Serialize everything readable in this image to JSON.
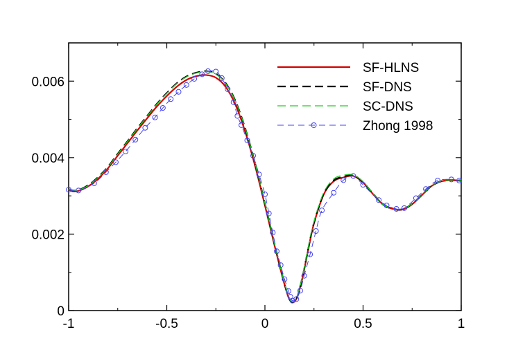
{
  "chart_data": {
    "type": "line",
    "title": "",
    "xlabel": "",
    "ylabel": "",
    "xlim": [
      -1,
      1
    ],
    "ylim": [
      0,
      0.007
    ],
    "grid": false,
    "legend_placement": "top-right",
    "x_ticks": [
      "-1",
      "-0.5",
      "0",
      "0.5",
      "1"
    ],
    "x_tick_values": [
      -1,
      -0.5,
      0,
      0.5,
      1
    ],
    "y_ticks": [
      "0",
      "0.002",
      "0.004",
      "0.006"
    ],
    "y_tick_values": [
      0,
      0.002,
      0.004,
      0.006
    ],
    "series": [
      {
        "name": "SF-HLNS",
        "color": "#d40000",
        "style": "solid",
        "x": [
          -1.0,
          -0.98,
          -0.95,
          -0.9,
          -0.85,
          -0.8,
          -0.75,
          -0.7,
          -0.65,
          -0.6,
          -0.55,
          -0.5,
          -0.45,
          -0.4,
          -0.35,
          -0.3,
          -0.25,
          -0.2,
          -0.15,
          -0.1,
          -0.05,
          0.0,
          0.05,
          0.1,
          0.13,
          0.16,
          0.19,
          0.22,
          0.25,
          0.3,
          0.35,
          0.4,
          0.45,
          0.5,
          0.55,
          0.6,
          0.65,
          0.7,
          0.75,
          0.8,
          0.85,
          0.9,
          0.95,
          1.0
        ],
        "values": [
          0.00317,
          0.00312,
          0.00313,
          0.00325,
          0.00345,
          0.00372,
          0.00405,
          0.00438,
          0.00471,
          0.00503,
          0.00534,
          0.00561,
          0.00585,
          0.00603,
          0.00613,
          0.00616,
          0.00609,
          0.00585,
          0.00538,
          0.00467,
          0.00378,
          0.00275,
          0.00168,
          0.00068,
          0.00025,
          0.0003,
          0.00083,
          0.00158,
          0.00228,
          0.00304,
          0.00338,
          0.00348,
          0.00352,
          0.00335,
          0.00305,
          0.00278,
          0.00266,
          0.00264,
          0.00278,
          0.00302,
          0.00326,
          0.00338,
          0.00341,
          0.00339
        ]
      },
      {
        "name": "SF-DNS",
        "color": "#000000",
        "style": "dashed",
        "x": [
          -1.0,
          -0.98,
          -0.95,
          -0.9,
          -0.85,
          -0.8,
          -0.75,
          -0.7,
          -0.65,
          -0.6,
          -0.55,
          -0.5,
          -0.45,
          -0.4,
          -0.35,
          -0.3,
          -0.25,
          -0.2,
          -0.15,
          -0.1,
          -0.05,
          0.0,
          0.05,
          0.1,
          0.13,
          0.16,
          0.19,
          0.22,
          0.25,
          0.3,
          0.35,
          0.4,
          0.45,
          0.5,
          0.55,
          0.6,
          0.65,
          0.7,
          0.75,
          0.8,
          0.85,
          0.9,
          0.95,
          1.0
        ],
        "values": [
          0.00318,
          0.00314,
          0.00315,
          0.00328,
          0.00349,
          0.00376,
          0.0041,
          0.00443,
          0.00477,
          0.00509,
          0.00541,
          0.00569,
          0.00594,
          0.00612,
          0.00622,
          0.00626,
          0.00619,
          0.00595,
          0.00548,
          0.00476,
          0.00385,
          0.0028,
          0.00172,
          0.0007,
          0.00026,
          0.00031,
          0.00085,
          0.0016,
          0.0023,
          0.00306,
          0.0034,
          0.0035,
          0.00354,
          0.00336,
          0.00306,
          0.00278,
          0.00266,
          0.00265,
          0.00279,
          0.00303,
          0.00327,
          0.00339,
          0.00342,
          0.0034
        ]
      },
      {
        "name": "SC-DNS",
        "color": "#22cc22",
        "style": "dashed",
        "x": [
          -1.0,
          -0.98,
          -0.95,
          -0.9,
          -0.85,
          -0.8,
          -0.75,
          -0.7,
          -0.65,
          -0.6,
          -0.55,
          -0.5,
          -0.45,
          -0.4,
          -0.35,
          -0.3,
          -0.25,
          -0.2,
          -0.15,
          -0.1,
          -0.05,
          0.0,
          0.05,
          0.1,
          0.13,
          0.16,
          0.19,
          0.22,
          0.25,
          0.3,
          0.35,
          0.4,
          0.45,
          0.5,
          0.55,
          0.6,
          0.65,
          0.7,
          0.75,
          0.8,
          0.85,
          0.9,
          0.95,
          1.0
        ],
        "values": [
          0.00318,
          0.00314,
          0.00315,
          0.00327,
          0.00348,
          0.00375,
          0.00409,
          0.00442,
          0.00476,
          0.00508,
          0.0054,
          0.00568,
          0.00593,
          0.00611,
          0.00621,
          0.00625,
          0.00618,
          0.00594,
          0.00547,
          0.00476,
          0.00385,
          0.0028,
          0.00172,
          0.00071,
          0.00027,
          0.00032,
          0.00087,
          0.00162,
          0.00233,
          0.00309,
          0.00344,
          0.00354,
          0.00355,
          0.00337,
          0.00306,
          0.00278,
          0.00266,
          0.00265,
          0.00279,
          0.00303,
          0.00327,
          0.00339,
          0.00342,
          0.0034
        ]
      },
      {
        "name": "Zhong 1998",
        "color": "#4444ee",
        "style": "dashed-circles",
        "x": [
          -1.0,
          -0.95,
          -0.87,
          -0.81,
          -0.76,
          -0.71,
          -0.66,
          -0.61,
          -0.56,
          -0.52,
          -0.48,
          -0.44,
          -0.4,
          -0.36,
          -0.32,
          -0.29,
          -0.25,
          -0.22,
          -0.19,
          -0.16,
          -0.14,
          -0.12,
          -0.09,
          -0.06,
          -0.03,
          0.0,
          0.02,
          0.04,
          0.06,
          0.08,
          0.1,
          0.12,
          0.13,
          0.14,
          0.16,
          0.18,
          0.2,
          0.23,
          0.26,
          0.29,
          0.35,
          0.4,
          0.45,
          0.5,
          0.58,
          0.62,
          0.67,
          0.71,
          0.77,
          0.82,
          0.88,
          0.95,
          0.99
        ],
        "values": [
          0.00316,
          0.00314,
          0.00333,
          0.00362,
          0.00388,
          0.00416,
          0.00447,
          0.00478,
          0.00505,
          0.0053,
          0.00553,
          0.00572,
          0.0059,
          0.00606,
          0.00618,
          0.00626,
          0.00625,
          0.00608,
          0.00579,
          0.00545,
          0.00509,
          0.00485,
          0.00445,
          0.00405,
          0.00356,
          0.00304,
          0.00254,
          0.00204,
          0.00155,
          0.00119,
          0.00082,
          0.00051,
          0.00036,
          0.00026,
          0.0003,
          0.00052,
          0.00091,
          0.00147,
          0.00208,
          0.00262,
          0.00308,
          0.00341,
          0.00352,
          0.00329,
          0.00289,
          0.00275,
          0.00266,
          0.00268,
          0.00294,
          0.00318,
          0.0034,
          0.00343,
          0.0034
        ]
      }
    ]
  }
}
